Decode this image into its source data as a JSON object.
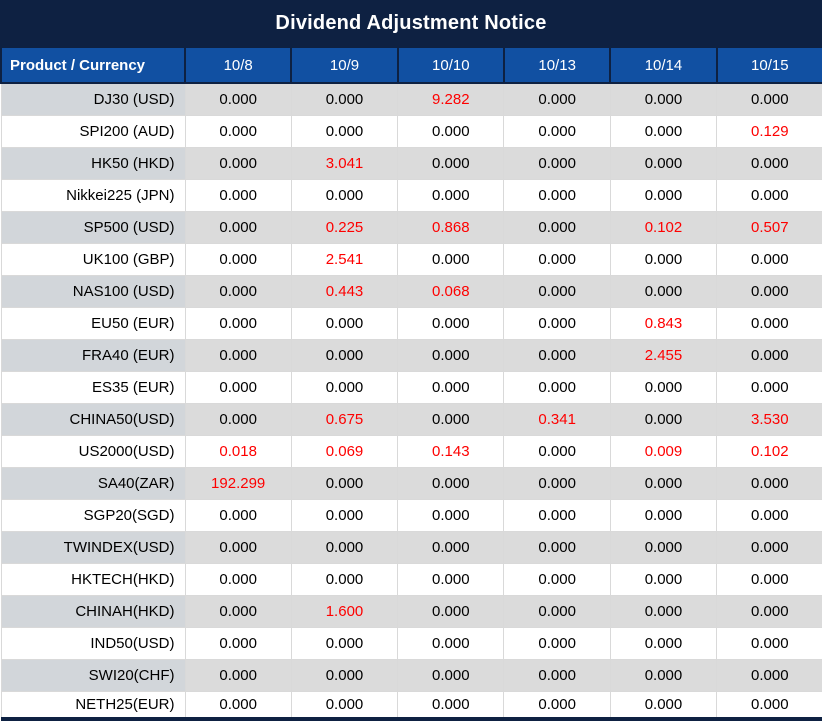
{
  "title": "Dividend Adjustment Notice",
  "colors": {
    "title_bg": "#0e2142",
    "header_bg": "#1150a2",
    "stripe_row_gray": "#dbdbdb",
    "stripe_product_gray": "#d2d6da",
    "grid_border": "#d9d9d9",
    "nonzero_value_red": "#fe0000",
    "value_black": "#000000",
    "header_text_white": "#ffffff"
  },
  "chart_data": {
    "type": "table",
    "title": "Dividend Adjustment Notice",
    "columns": [
      "Product / Currency",
      "10/8",
      "10/9",
      "10/10",
      "10/13",
      "10/14",
      "10/15"
    ],
    "rows": [
      {
        "product": "DJ30 (USD)",
        "values": [
          "0.000",
          "0.000",
          "9.282",
          "0.000",
          "0.000",
          "0.000"
        ]
      },
      {
        "product": "SPI200 (AUD)",
        "values": [
          "0.000",
          "0.000",
          "0.000",
          "0.000",
          "0.000",
          "0.129"
        ]
      },
      {
        "product": "HK50 (HKD)",
        "values": [
          "0.000",
          "3.041",
          "0.000",
          "0.000",
          "0.000",
          "0.000"
        ]
      },
      {
        "product": "Nikkei225 (JPN)",
        "values": [
          "0.000",
          "0.000",
          "0.000",
          "0.000",
          "0.000",
          "0.000"
        ]
      },
      {
        "product": "SP500 (USD)",
        "values": [
          "0.000",
          "0.225",
          "0.868",
          "0.000",
          "0.102",
          "0.507"
        ]
      },
      {
        "product": "UK100 (GBP)",
        "values": [
          "0.000",
          "2.541",
          "0.000",
          "0.000",
          "0.000",
          "0.000"
        ]
      },
      {
        "product": "NAS100 (USD)",
        "values": [
          "0.000",
          "0.443",
          "0.068",
          "0.000",
          "0.000",
          "0.000"
        ]
      },
      {
        "product": "EU50 (EUR)",
        "values": [
          "0.000",
          "0.000",
          "0.000",
          "0.000",
          "0.843",
          "0.000"
        ]
      },
      {
        "product": "FRA40 (EUR)",
        "values": [
          "0.000",
          "0.000",
          "0.000",
          "0.000",
          "2.455",
          "0.000"
        ]
      },
      {
        "product": "ES35 (EUR)",
        "values": [
          "0.000",
          "0.000",
          "0.000",
          "0.000",
          "0.000",
          "0.000"
        ]
      },
      {
        "product": "CHINA50(USD)",
        "values": [
          "0.000",
          "0.675",
          "0.000",
          "0.341",
          "0.000",
          "3.530"
        ]
      },
      {
        "product": "US2000(USD)",
        "values": [
          "0.018",
          "0.069",
          "0.143",
          "0.000",
          "0.009",
          "0.102"
        ]
      },
      {
        "product": "SA40(ZAR)",
        "values": [
          "192.299",
          "0.000",
          "0.000",
          "0.000",
          "0.000",
          "0.000"
        ]
      },
      {
        "product": "SGP20(SGD)",
        "values": [
          "0.000",
          "0.000",
          "0.000",
          "0.000",
          "0.000",
          "0.000"
        ]
      },
      {
        "product": "TWINDEX(USD)",
        "values": [
          "0.000",
          "0.000",
          "0.000",
          "0.000",
          "0.000",
          "0.000"
        ]
      },
      {
        "product": "HKTECH(HKD)",
        "values": [
          "0.000",
          "0.000",
          "0.000",
          "0.000",
          "0.000",
          "0.000"
        ]
      },
      {
        "product": "CHINAH(HKD)",
        "values": [
          "0.000",
          "1.600",
          "0.000",
          "0.000",
          "0.000",
          "0.000"
        ]
      },
      {
        "product": "IND50(USD)",
        "values": [
          "0.000",
          "0.000",
          "0.000",
          "0.000",
          "0.000",
          "0.000"
        ]
      },
      {
        "product": "SWI20(CHF)",
        "values": [
          "0.000",
          "0.000",
          "0.000",
          "0.000",
          "0.000",
          "0.000"
        ]
      },
      {
        "product": "NETH25(EUR)",
        "values": [
          "0.000",
          "0.000",
          "0.000",
          "0.000",
          "0.000",
          "0.000"
        ]
      }
    ]
  }
}
